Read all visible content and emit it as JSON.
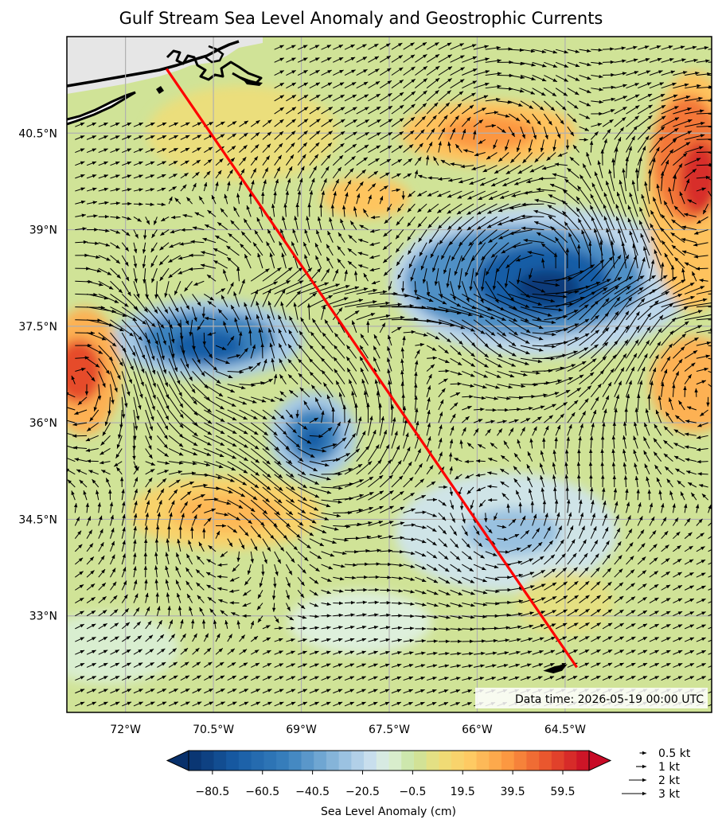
{
  "title": "Gulf Stream Sea Level Anomaly and Geostrophic Currents",
  "map": {
    "lon_range": [
      -73.0,
      -62.0
    ],
    "lat_range": [
      31.5,
      42.0
    ],
    "x_ticks": [
      {
        "lon": -72.0,
        "label": "72°W"
      },
      {
        "lon": -70.5,
        "label": "70.5°W"
      },
      {
        "lon": -69.0,
        "label": "69°W"
      },
      {
        "lon": -67.5,
        "label": "67.5°W"
      },
      {
        "lon": -66.0,
        "label": "66°W"
      },
      {
        "lon": -64.5,
        "label": "64.5°W"
      }
    ],
    "y_ticks": [
      {
        "lat": 40.5,
        "label": "40.5°N"
      },
      {
        "lat": 39.0,
        "label": "39°N"
      },
      {
        "lat": 37.5,
        "label": "37.5°N"
      },
      {
        "lat": 36.0,
        "label": "36°N"
      },
      {
        "lat": 34.5,
        "label": "34.5°N"
      },
      {
        "lat": 33.0,
        "label": "33°N"
      }
    ],
    "gridlines": true,
    "track_line": {
      "color": "#ff0000",
      "start": [
        -71.3,
        41.5
      ],
      "end": [
        -64.3,
        32.2
      ]
    },
    "data_time": "Data time: 2026-05-19 00:00 UTC",
    "anomaly_features": [
      {
        "kind": "low",
        "lon": -64.9,
        "lat": 38.2,
        "value": -80
      },
      {
        "kind": "low",
        "lon": -70.6,
        "lat": 37.3,
        "value": -65
      },
      {
        "kind": "low",
        "lon": -68.8,
        "lat": 35.8,
        "value": -60
      },
      {
        "kind": "low",
        "lon": -65.5,
        "lat": 34.3,
        "value": -25
      },
      {
        "kind": "high",
        "lon": -62.3,
        "lat": 39.6,
        "value": 60
      },
      {
        "kind": "high",
        "lon": -72.7,
        "lat": 36.8,
        "value": 55
      },
      {
        "kind": "high",
        "lon": -65.8,
        "lat": 40.5,
        "value": 35
      },
      {
        "kind": "high",
        "lon": -70.3,
        "lat": 34.6,
        "value": 30
      },
      {
        "kind": "high",
        "lon": -62.3,
        "lat": 36.6,
        "value": 35
      },
      {
        "kind": "high",
        "lon": -67.9,
        "lat": 39.5,
        "value": 22
      }
    ]
  },
  "colorbar": {
    "label": "Sea Level Anomaly (cm)",
    "min": -90,
    "max": 70,
    "step": 5,
    "ticks": [
      {
        "value": -80.5,
        "label": "−80.5"
      },
      {
        "value": -60.5,
        "label": "−60.5"
      },
      {
        "value": -40.5,
        "label": "−40.5"
      },
      {
        "value": -20.5,
        "label": "−20.5"
      },
      {
        "value": -0.5,
        "label": "−0.5"
      },
      {
        "value": 19.5,
        "label": "19.5"
      },
      {
        "value": 39.5,
        "label": "39.5"
      },
      {
        "value": 59.5,
        "label": "59.5"
      }
    ]
  },
  "quiver_key": [
    {
      "speed": 0.5,
      "label": "0.5 kt"
    },
    {
      "speed": 1,
      "label": "1 kt"
    },
    {
      "speed": 2,
      "label": "2 kt"
    },
    {
      "speed": 3,
      "label": "3 kt"
    }
  ]
}
